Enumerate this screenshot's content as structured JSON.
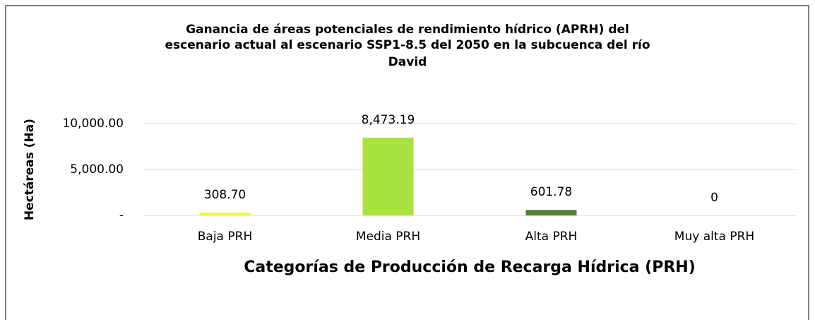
{
  "chart_data": {
    "type": "bar",
    "title": [
      "Ganancia de áreas potenciales de rendimiento hídrico (APRH)  del",
      "escenario actual al escenario SSP1-8.5 del 2050 en la subcuenca del río",
      "David"
    ],
    "x_label": "Categorías de Producción de Recarga Hídrica (PRH)",
    "y_label": "Hectáreas (Ha)",
    "categories": [
      "Baja PRH",
      "Media PRH",
      "Alta PRH",
      "Muy alta PRH"
    ],
    "values": [
      308.7,
      8473.19,
      601.78,
      0
    ],
    "value_labels": [
      "308.70",
      "8,473.19",
      "601.78",
      "0"
    ],
    "colors": [
      "#f5f53a",
      "#a9e23f",
      "#548235",
      "#548235"
    ],
    "ylim": [
      0,
      12000
    ],
    "yticks": [
      {
        "value": 0,
        "label": "-"
      },
      {
        "value": 5000,
        "label": "5,000.00"
      },
      {
        "value": 10000,
        "label": "10,000.00"
      }
    ],
    "grid": true
  }
}
